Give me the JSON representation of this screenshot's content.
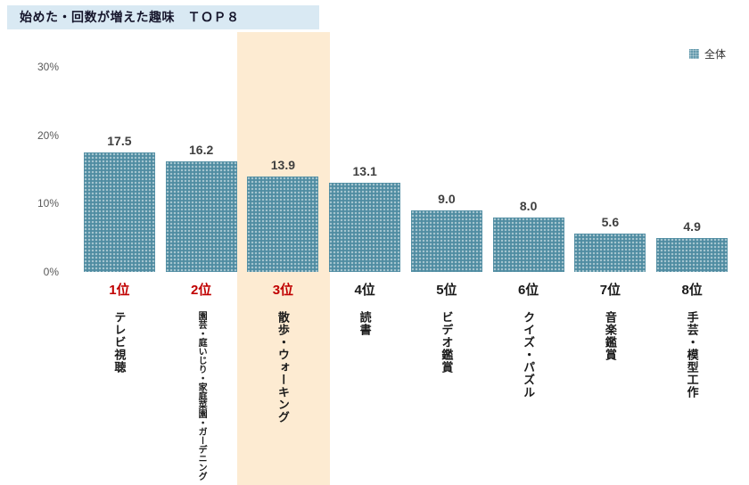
{
  "title": "始めた・回数が増えた趣味　ＴＯＰ８",
  "legend": {
    "label": "全体"
  },
  "chart_data": {
    "type": "bar",
    "title": "始めた・回数が増えた趣味 TOP8",
    "categories": [
      "テレビ視聴",
      "園芸・庭いじり・家庭菜園・ガーデニング",
      "散歩・ウォーキング",
      "読書",
      "ビデオ鑑賞",
      "クイズ・パズル",
      "音楽鑑賞",
      "手芸・模型工作"
    ],
    "ranks": [
      "1位",
      "2位",
      "3位",
      "4位",
      "5位",
      "6位",
      "7位",
      "8位"
    ],
    "values": [
      17.5,
      16.2,
      13.9,
      13.1,
      9.0,
      8.0,
      5.6,
      4.9
    ],
    "value_labels": [
      "17.5",
      "16.2",
      "13.9",
      "13.1",
      "9.0",
      "8.0",
      "5.6",
      "4.9"
    ],
    "y_ticks": [
      "30%",
      "20%",
      "10%",
      "0%"
    ],
    "ylim": [
      0,
      30
    ],
    "unit": "%",
    "highlighted_index": 2,
    "red_rank_count": 3,
    "legend": [
      "全体"
    ],
    "grid": false,
    "legend_position": "top-right",
    "colors": {
      "bar": "#4f8ca2",
      "highlight_band": "#fdebd2",
      "rank_top3": "#c00000",
      "rank_rest": "#1a1a1a",
      "title_bg": "#d9e9f3",
      "value_label": "#404040",
      "axis_tick": "#595959"
    }
  }
}
